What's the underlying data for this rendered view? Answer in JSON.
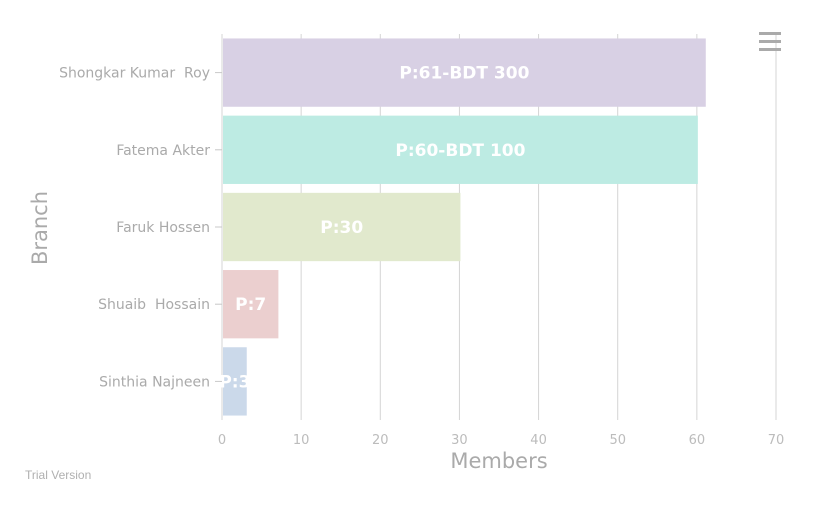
{
  "menu": {
    "icon": "hamburger-menu-icon"
  },
  "watermark": "Trial Version",
  "chart_data": {
    "type": "bar",
    "orientation": "horizontal",
    "categories": [
      "Shongkar Kumar  Roy",
      "Fatema Akter",
      "Faruk Hossen",
      "Shuaib  Hossain",
      "Sinthia Najneen"
    ],
    "values": [
      61,
      60,
      30,
      7,
      3
    ],
    "data_labels": [
      "P:61-BDT 300",
      "P:60-BDT 100",
      "P:30",
      "P:7",
      "P:3"
    ],
    "colors": [
      "#d8d0e4",
      "#bdebe3",
      "#e1e9cd",
      "#ebcfcf",
      "#cbd9ea"
    ],
    "title": "",
    "xlabel": "Members",
    "ylabel": "Branch",
    "xlim": [
      0,
      70
    ],
    "xticks": [
      0,
      10,
      20,
      30,
      40,
      50,
      60,
      70
    ],
    "grid": true,
    "legend": "none"
  }
}
